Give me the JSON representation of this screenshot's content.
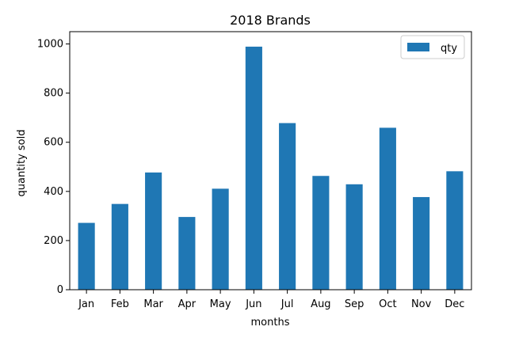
{
  "chart_data": {
    "type": "bar",
    "title": "2018 Brands",
    "xlabel": "months",
    "ylabel": "quantity sold",
    "categories": [
      "Jan",
      "Feb",
      "Mar",
      "Apr",
      "May",
      "Jun",
      "Jul",
      "Aug",
      "Sep",
      "Oct",
      "Nov",
      "Dec"
    ],
    "series": [
      {
        "name": "qty",
        "color": "#1f77b4",
        "values": [
          272,
          349,
          477,
          296,
          411,
          989,
          678,
          463,
          429,
          659,
          377,
          482
        ]
      }
    ],
    "ylim": [
      0,
      1050
    ],
    "yticks": [
      0,
      200,
      400,
      600,
      800,
      1000
    ],
    "grid": false,
    "legend": "top-right"
  }
}
